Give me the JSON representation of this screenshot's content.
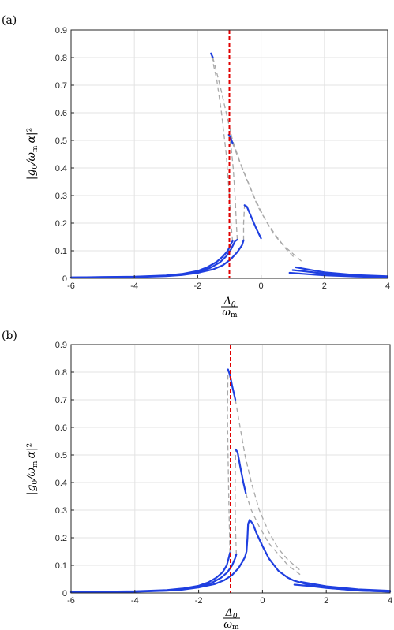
{
  "chart_data": [
    {
      "panel_label": "(a)",
      "type": "line",
      "xlim": [
        -6,
        4
      ],
      "ylim": [
        0,
        0.9
      ],
      "x_ticks": [
        "-6",
        "-4",
        "-2",
        "0",
        "2",
        "4"
      ],
      "y_ticks": [
        "0",
        "0.1",
        "0.2",
        "0.3",
        "0.4",
        "0.5",
        "0.6",
        "0.7",
        "0.8",
        "0.9"
      ],
      "xlabel": "Δ0/ωm",
      "ylabel": "|g0/ωm α|²",
      "grid": true,
      "vline": {
        "x": -1,
        "color": "#e00000",
        "style": "dashed"
      },
      "curves": [
        {
          "stable_color": "#1f3fe0",
          "unstable_color": "#a8a8a8",
          "stable_left": [
            [
              -6,
              0.0035
            ],
            [
              -4,
              0.0063
            ],
            [
              -3,
              0.0106
            ],
            [
              -2.5,
              0.016
            ],
            [
              -2,
              0.027
            ],
            [
              -1.7,
              0.04
            ],
            [
              -1.4,
              0.06
            ],
            [
              -1.2,
              0.08
            ],
            [
              -1.05,
              0.1
            ],
            [
              -0.95,
              0.125
            ],
            [
              -0.9,
              0.135
            ]
          ],
          "unstable": [
            [
              -0.9,
              0.135
            ],
            [
              -0.95,
              0.2
            ],
            [
              -1.0,
              0.3
            ],
            [
              -1.1,
              0.45
            ],
            [
              -1.25,
              0.6
            ],
            [
              -1.4,
              0.72
            ],
            [
              -1.58,
              0.815
            ]
          ],
          "stable_upper": [
            [
              -1.58,
              0.815
            ],
            [
              -1.56,
              0.81
            ],
            [
              -1.52,
              0.8
            ]
          ],
          "unstable_upper": [
            [
              -1.52,
              0.8
            ],
            [
              -1.3,
              0.7
            ],
            [
              -1.1,
              0.6
            ],
            [
              -0.9,
              0.5
            ],
            [
              -0.6,
              0.4
            ],
            [
              -0.35,
              0.33
            ],
            [
              -0.1,
              0.26
            ],
            [
              0.2,
              0.2
            ],
            [
              0.5,
              0.15
            ],
            [
              0.8,
              0.105
            ],
            [
              1.1,
              0.07
            ]
          ],
          "stable_right": [
            [
              1.1,
              0.04
            ],
            [
              1.5,
              0.032
            ],
            [
              2,
              0.022
            ],
            [
              3,
              0.012
            ],
            [
              4,
              0.0075
            ]
          ]
        },
        {
          "stable_color": "#1f3fe0",
          "unstable_color": "#a8a8a8",
          "stable_left": [
            [
              -6,
              0.003
            ],
            [
              -4,
              0.0055
            ],
            [
              -3,
              0.0095
            ],
            [
              -2.5,
              0.014
            ],
            [
              -2,
              0.024
            ],
            [
              -1.6,
              0.038
            ],
            [
              -1.3,
              0.058
            ],
            [
              -1.1,
              0.08
            ],
            [
              -0.95,
              0.105
            ],
            [
              -0.82,
              0.135
            ],
            [
              -0.75,
              0.14
            ]
          ],
          "unstable": [
            [
              -0.75,
              0.14
            ],
            [
              -0.78,
              0.2
            ],
            [
              -0.82,
              0.3
            ],
            [
              -0.88,
              0.4
            ],
            [
              -0.94,
              0.47
            ],
            [
              -1.02,
              0.52
            ]
          ],
          "stable_upper": [
            [
              -1.02,
              0.52
            ],
            [
              -0.98,
              0.515
            ],
            [
              -0.9,
              0.49
            ]
          ],
          "unstable_upper": [
            [
              -0.9,
              0.49
            ],
            [
              -0.7,
              0.43
            ],
            [
              -0.45,
              0.36
            ],
            [
              -0.2,
              0.29
            ],
            [
              0.1,
              0.22
            ],
            [
              0.4,
              0.16
            ],
            [
              0.7,
              0.12
            ],
            [
              1.0,
              0.09
            ],
            [
              1.3,
              0.06
            ]
          ],
          "stable_right": [
            [
              1.0,
              0.03
            ],
            [
              1.5,
              0.024
            ],
            [
              2,
              0.017
            ],
            [
              3,
              0.009
            ],
            [
              4,
              0.005
            ]
          ]
        },
        {
          "stable_color": "#1f3fe0",
          "unstable_color": "#a8a8a8",
          "stable_left": [
            [
              -6,
              0.0025
            ],
            [
              -4,
              0.0047
            ],
            [
              -3,
              0.008
            ],
            [
              -2.5,
              0.012
            ],
            [
              -2,
              0.02
            ],
            [
              -1.5,
              0.033
            ],
            [
              -1.2,
              0.048
            ],
            [
              -0.95,
              0.07
            ],
            [
              -0.75,
              0.095
            ],
            [
              -0.6,
              0.12
            ],
            [
              -0.55,
              0.138
            ]
          ],
          "unstable": [
            [
              -0.55,
              0.138
            ],
            [
              -0.55,
              0.2
            ],
            [
              -0.52,
              0.265
            ]
          ],
          "stable_upper": [
            [
              -0.52,
              0.265
            ],
            [
              -0.45,
              0.26
            ],
            [
              -0.3,
              0.22
            ],
            [
              -0.15,
              0.18
            ],
            [
              0,
              0.145
            ]
          ],
          "unstable_upper": [],
          "stable_right": [
            [
              0.9,
              0.02
            ],
            [
              1.5,
              0.015
            ],
            [
              2,
              0.011
            ],
            [
              3,
              0.007
            ],
            [
              4,
              0.004
            ]
          ]
        }
      ]
    },
    {
      "panel_label": "(b)",
      "type": "line",
      "xlim": [
        -6,
        4
      ],
      "ylim": [
        0,
        0.9
      ],
      "x_ticks": [
        "-6",
        "-4",
        "-2",
        "0",
        "2",
        "4"
      ],
      "y_ticks": [
        "0",
        "0.1",
        "0.2",
        "0.3",
        "0.4",
        "0.5",
        "0.6",
        "0.7",
        "0.8",
        "0.9"
      ],
      "xlabel": "Δ0/ωm",
      "ylabel": "|g0/ωm α|²",
      "grid": true,
      "vline": {
        "x": -1,
        "color": "#e00000",
        "style": "dashed"
      },
      "curves": [
        {
          "stable_color": "#1f3fe0",
          "unstable_color": "#a8a8a8",
          "stable_left": [
            [
              -6,
              0.0035
            ],
            [
              -4,
              0.0062
            ],
            [
              -3,
              0.0105
            ],
            [
              -2.5,
              0.016
            ],
            [
              -2,
              0.026
            ],
            [
              -1.7,
              0.038
            ],
            [
              -1.45,
              0.055
            ],
            [
              -1.25,
              0.075
            ],
            [
              -1.12,
              0.1
            ],
            [
              -1.05,
              0.13
            ],
            [
              -1.02,
              0.145
            ]
          ],
          "unstable": [
            [
              -1.02,
              0.145
            ],
            [
              -1.05,
              0.3
            ],
            [
              -1.08,
              0.5
            ],
            [
              -1.1,
              0.65
            ],
            [
              -1.08,
              0.81
            ]
          ],
          "stable_upper": [
            [
              -1.08,
              0.81
            ],
            [
              -1.02,
              0.79
            ],
            [
              -0.95,
              0.75
            ],
            [
              -0.85,
              0.7
            ]
          ],
          "unstable_upper": [
            [
              -0.85,
              0.7
            ],
            [
              -0.7,
              0.6
            ],
            [
              -0.55,
              0.5
            ],
            [
              -0.35,
              0.4
            ],
            [
              -0.1,
              0.3
            ],
            [
              0.2,
              0.22
            ],
            [
              0.5,
              0.16
            ],
            [
              0.8,
              0.12
            ],
            [
              1.2,
              0.08
            ]
          ],
          "stable_right": [
            [
              1.2,
              0.04
            ],
            [
              1.5,
              0.034
            ],
            [
              2,
              0.024
            ],
            [
              3,
              0.013
            ],
            [
              4,
              0.008
            ]
          ]
        },
        {
          "stable_color": "#1f3fe0",
          "unstable_color": "#a8a8a8",
          "stable_left": [
            [
              -6,
              0.003
            ],
            [
              -4,
              0.0054
            ],
            [
              -3,
              0.009
            ],
            [
              -2.5,
              0.014
            ],
            [
              -2,
              0.023
            ],
            [
              -1.6,
              0.036
            ],
            [
              -1.3,
              0.055
            ],
            [
              -1.1,
              0.075
            ],
            [
              -0.95,
              0.1
            ],
            [
              -0.86,
              0.125
            ],
            [
              -0.82,
              0.14
            ]
          ],
          "unstable": [
            [
              -0.82,
              0.14
            ],
            [
              -0.85,
              0.25
            ],
            [
              -0.86,
              0.38
            ],
            [
              -0.84,
              0.52
            ]
          ],
          "stable_upper": [
            [
              -0.84,
              0.52
            ],
            [
              -0.78,
              0.51
            ],
            [
              -0.7,
              0.46
            ],
            [
              -0.6,
              0.4
            ],
            [
              -0.52,
              0.36
            ]
          ],
          "unstable_upper": [
            [
              -0.52,
              0.36
            ],
            [
              -0.35,
              0.3
            ],
            [
              -0.1,
              0.24
            ],
            [
              0.2,
              0.18
            ],
            [
              0.5,
              0.14
            ],
            [
              0.8,
              0.1
            ],
            [
              1.2,
              0.065
            ]
          ],
          "stable_right": [
            [
              1.0,
              0.03
            ],
            [
              1.5,
              0.025
            ],
            [
              2,
              0.018
            ],
            [
              3,
              0.009
            ],
            [
              4,
              0.005
            ]
          ]
        },
        {
          "stable_color": "#1f3fe0",
          "unstable_color": "#a8a8a8",
          "stable_left": [
            [
              -6,
              0.0025
            ],
            [
              -4,
              0.0046
            ],
            [
              -3,
              0.008
            ],
            [
              -2.5,
              0.012
            ],
            [
              -2,
              0.02
            ],
            [
              -1.5,
              0.032
            ],
            [
              -1.2,
              0.046
            ],
            [
              -0.95,
              0.065
            ],
            [
              -0.75,
              0.09
            ],
            [
              -0.62,
              0.115
            ],
            [
              -0.55,
              0.13
            ],
            [
              -0.5,
              0.15
            ],
            [
              -0.47,
              0.2
            ],
            [
              -0.45,
              0.25
            ],
            [
              -0.4,
              0.265
            ],
            [
              -0.3,
              0.25
            ],
            [
              -0.2,
              0.22
            ],
            [
              0,
              0.17
            ],
            [
              0.2,
              0.125
            ],
            [
              0.5,
              0.08
            ],
            [
              0.8,
              0.055
            ],
            [
              1,
              0.044
            ],
            [
              1.5,
              0.028
            ],
            [
              2,
              0.019
            ],
            [
              3,
              0.009
            ],
            [
              4,
              0.005
            ]
          ],
          "unstable": [],
          "stable_upper": [],
          "unstable_upper": [],
          "stable_right": []
        }
      ]
    }
  ]
}
